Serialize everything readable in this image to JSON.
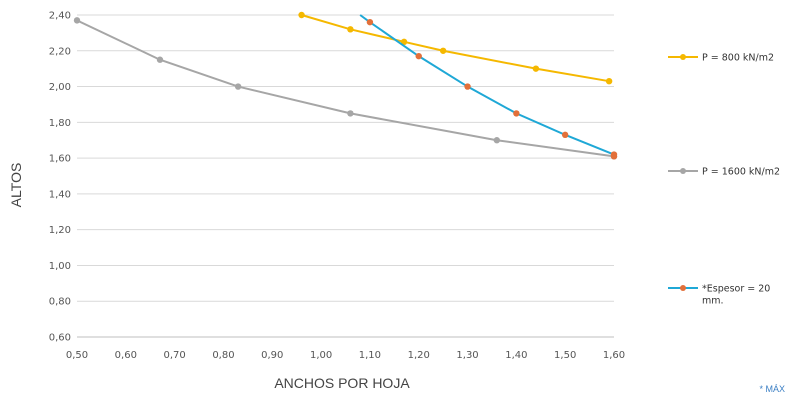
{
  "chart_data": {
    "type": "line",
    "xlabel": "ANCHOS POR HOJA",
    "ylabel": "ALTOS",
    "xlim": [
      0.5,
      1.6
    ],
    "ylim": [
      0.6,
      2.4
    ],
    "xticks": [
      "0,50",
      "0,60",
      "0,70",
      "0,80",
      "0,90",
      "1,00",
      "1,10",
      "1,20",
      "1,30",
      "1,40",
      "1,50",
      "1,60"
    ],
    "yticks": [
      "0,60",
      "0,80",
      "1,00",
      "1,20",
      "1,40",
      "1,60",
      "1,80",
      "2,00",
      "2,20",
      "2,40"
    ],
    "grid": "horizontal",
    "legend": "right",
    "series": [
      {
        "name": "P = 800 kN/m2",
        "color": "#f5b800",
        "marker_color": "#f5b800",
        "points": [
          [
            0.96,
            2.4
          ],
          [
            1.06,
            2.32
          ],
          [
            1.17,
            2.25
          ],
          [
            1.25,
            2.2
          ],
          [
            1.44,
            2.1
          ],
          [
            1.59,
            2.03
          ]
        ]
      },
      {
        "name": "P = 1600 kN/m2",
        "color": "#a6a6a6",
        "marker_color": "#a6a6a6",
        "points": [
          [
            0.5,
            2.37
          ],
          [
            0.67,
            2.15
          ],
          [
            0.83,
            2.0
          ],
          [
            1.06,
            1.85
          ],
          [
            1.36,
            1.7
          ],
          [
            1.6,
            1.61
          ]
        ]
      },
      {
        "name": "*Espesor = 20 mm.",
        "color": "#1fa8d6",
        "marker_color": "#e2703a",
        "points": [
          [
            1.08,
            2.4
          ],
          [
            1.1,
            2.36
          ],
          [
            1.2,
            2.17
          ],
          [
            1.3,
            2.0
          ],
          [
            1.4,
            1.85
          ],
          [
            1.5,
            1.73
          ],
          [
            1.6,
            1.62
          ]
        ],
        "marker_points": [
          [
            1.1,
            2.36
          ],
          [
            1.2,
            2.17
          ],
          [
            1.3,
            2.0
          ],
          [
            1.4,
            1.85
          ],
          [
            1.5,
            1.73
          ],
          [
            1.6,
            1.62
          ],
          [
            1.6,
            1.61
          ]
        ]
      }
    ]
  },
  "footer_note": "* MÁX"
}
